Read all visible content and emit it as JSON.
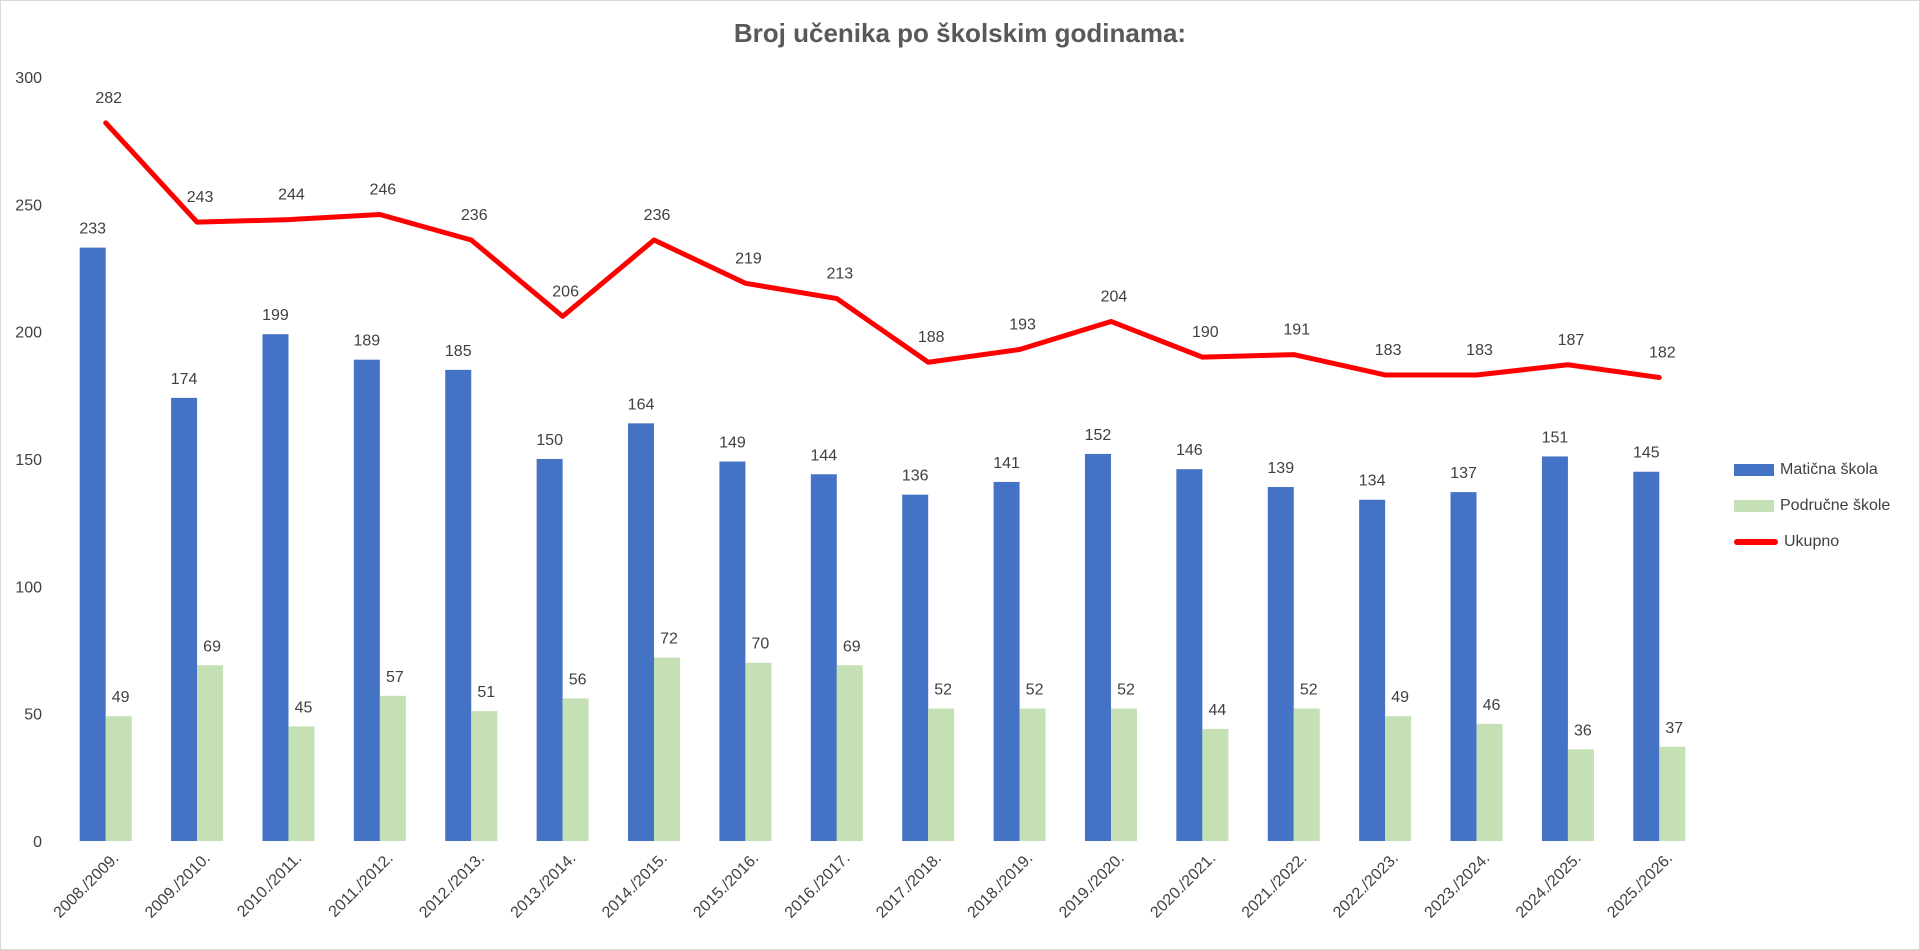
{
  "chart_data": {
    "type": "bar",
    "title": "Broj učenika po školskim godinama:",
    "categories": [
      "2008./2009.",
      "2009./2010.",
      "2010./2011.",
      "2011./2012.",
      "2012./2013.",
      "2013./2014.",
      "2014./2015.",
      "2015./2016.",
      "2016./2017.",
      "2017./2018.",
      "2018./2019.",
      "2019./2020.",
      "2020./2021.",
      "2021./2022.",
      "2022./2023.",
      "2023./2024.",
      "2024./2025.",
      "2025./2026."
    ],
    "series": [
      {
        "name": "Matična škola",
        "type": "bar",
        "color": "#4472c4",
        "values": [
          233,
          174,
          199,
          189,
          185,
          150,
          164,
          149,
          144,
          136,
          141,
          152,
          146,
          139,
          134,
          137,
          151,
          145
        ]
      },
      {
        "name": "Područne škole",
        "type": "bar",
        "color": "#c5e0b4",
        "values": [
          49,
          69,
          45,
          57,
          51,
          56,
          72,
          70,
          69,
          52,
          52,
          52,
          44,
          52,
          49,
          46,
          36,
          37
        ]
      },
      {
        "name": "Ukupno",
        "type": "line",
        "color": "#ff0000",
        "values": [
          282,
          243,
          244,
          246,
          236,
          206,
          236,
          219,
          213,
          188,
          193,
          204,
          190,
          191,
          183,
          183,
          187,
          182
        ]
      }
    ],
    "yticks": [
      0,
      50,
      100,
      150,
      200,
      250,
      300
    ],
    "ylim": [
      0,
      300
    ],
    "grid": false,
    "legend_position": "right",
    "xlabel": "",
    "ylabel": ""
  }
}
